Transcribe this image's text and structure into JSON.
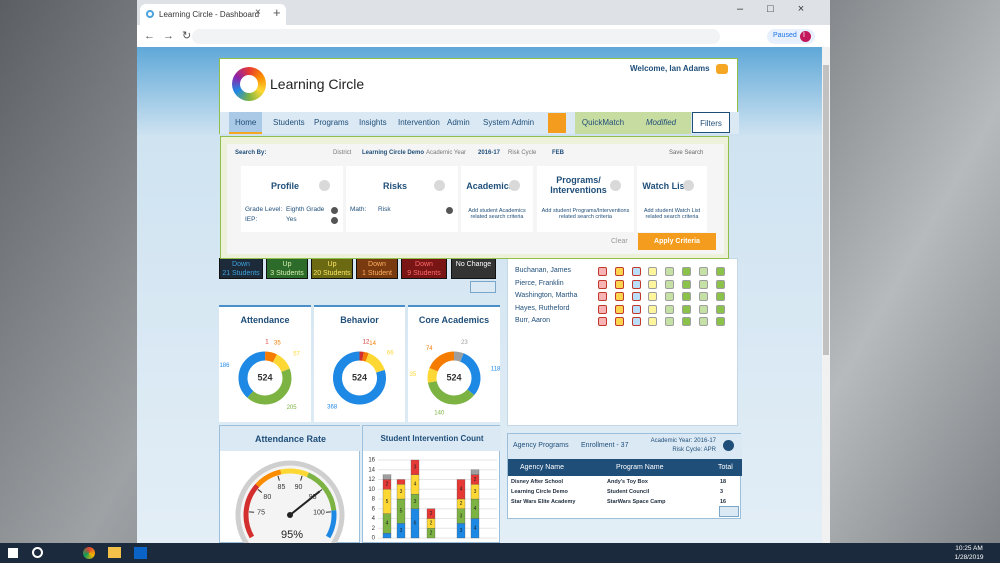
{
  "browser": {
    "tab_title": "Learning Circle - Dashboard",
    "profile_status": "Paused",
    "profile_initial": "I"
  },
  "header": {
    "brand": "Learning Circle",
    "welcome": "Welcome, Ian Adams",
    "nav": [
      "Home",
      "Students",
      "Programs",
      "Insights",
      "Intervention",
      "Admin",
      "System Admin"
    ],
    "quickmatch": "QuickMatch",
    "modified": "Modified",
    "filters": "Filters"
  },
  "filter": {
    "search_by": "Search By:",
    "district_label": "District",
    "district": "Learning Circle Demo",
    "year_label": "Academic Year",
    "year": "2016-17",
    "cycle_label": "Risk Cycle",
    "cycle": "FEB",
    "save": "Save Search",
    "cards": [
      {
        "title": "Profile",
        "items": [
          [
            "Grade Level:",
            "Eighth Grade"
          ],
          [
            "IEP:",
            "Yes"
          ]
        ]
      },
      {
        "title": "Risks",
        "items": [
          [
            "Math:",
            "Risk"
          ]
        ]
      },
      {
        "title": "Academics",
        "hint": "Add student Academics related search criteria"
      },
      {
        "title": "Programs/ Interventions",
        "hint": "Add student Programs/Interventions related search criteria"
      },
      {
        "title": "Watch List",
        "hint": "Add student Watch List related search criteria"
      }
    ],
    "clear": "Clear",
    "apply": "Apply Criteria"
  },
  "status_boxes": [
    {
      "direction": "Down",
      "count": "21 Students",
      "color": "#1c2a3a",
      "text_color": "#3ea3e0"
    },
    {
      "direction": "Up",
      "count": "3 Students",
      "color": "#2d6b2a",
      "text_color": "#d6f0b0"
    },
    {
      "direction": "Up",
      "count": "20 Students",
      "color": "#6b6a12",
      "text_color": "#ffe566"
    },
    {
      "direction": "Down",
      "count": "1 Student",
      "color": "#7a3a10",
      "text_color": "#ffb060"
    },
    {
      "direction": "Down",
      "count": "9 Students",
      "color": "#7a1515",
      "text_color": "#ff6a6a"
    },
    {
      "direction": "No Change",
      "color": "#333333",
      "text_color": "#ffffff"
    }
  ],
  "donuts": [
    {
      "title": "Attendance",
      "center": "524",
      "segments": [
        {
          "value": 1,
          "color": "#d32f2f"
        },
        {
          "value": 35,
          "color": "#f57c00"
        },
        {
          "value": 57,
          "color": "#fdd835"
        },
        {
          "value": 205,
          "color": "#7cb342"
        },
        {
          "value": 186,
          "color": "#1e88e5"
        }
      ]
    },
    {
      "title": "Behavior",
      "center": "524",
      "segments": [
        {
          "value": 12,
          "color": "#d32f2f"
        },
        {
          "value": 14,
          "color": "#f57c00"
        },
        {
          "value": 66,
          "color": "#fdd835"
        },
        {
          "value": 368,
          "color": "#1e88e5"
        }
      ]
    },
    {
      "title": "Core Academics",
      "center": "524",
      "segments": [
        {
          "value": 23,
          "color": "#9e9e9e"
        },
        {
          "value": 118,
          "color": "#1e88e5"
        },
        {
          "value": 140,
          "color": "#7cb342"
        },
        {
          "value": 35,
          "color": "#fdd835"
        },
        {
          "value": 74,
          "color": "#f57c00"
        }
      ]
    }
  ],
  "gauge": {
    "title": "Attendance Rate",
    "lim": [
      70,
      105
    ],
    "ticks": [
      75,
      80,
      85,
      90,
      95,
      100
    ],
    "value": 95,
    "value_label": "95%"
  },
  "intervention_chart": {
    "type": "bar",
    "title": "Student Intervention Count",
    "ylim": [
      0,
      16
    ],
    "yticks": [
      0,
      2,
      4,
      6,
      8,
      10,
      12,
      14,
      16
    ],
    "series": [
      {
        "color": "#1e88e5",
        "values": [
          1,
          3,
          6,
          0,
          0,
          3,
          4,
          0
        ]
      },
      {
        "color": "#7cb342",
        "values": [
          4,
          5,
          3,
          2,
          0,
          3,
          4,
          0
        ]
      },
      {
        "color": "#fdd835",
        "values": [
          5,
          3,
          4,
          2,
          0,
          2,
          3,
          0
        ]
      },
      {
        "color": "#e53935",
        "values": [
          2,
          1,
          3,
          2,
          0,
          4,
          2,
          0
        ]
      },
      {
        "color": "#9e9e9e",
        "values": [
          1,
          0,
          0,
          0,
          0,
          0,
          1,
          0
        ]
      }
    ]
  },
  "students": [
    "Buchanan, James",
    "Pierce, Franklin",
    "Washington, Martha",
    "Hayes, Rutheford",
    "Burr, Aaron"
  ],
  "agency": {
    "title": "Agency Programs",
    "enrollment": "Enrollment - 37",
    "year": "Academic Year: 2016-17",
    "cycle": "Risk Cycle: APR",
    "columns": [
      "Agency Name",
      "Program Name",
      "Total"
    ],
    "rows": [
      [
        "Disney After School",
        "Andy's Toy Box",
        18
      ],
      [
        "Learning Circle Demo",
        "Student Council",
        3
      ],
      [
        "Star Wars Elite Academy",
        "StarWars Space Camp",
        16
      ]
    ]
  },
  "taskbar": {
    "time": "10:25 AM",
    "date": "1/28/2019"
  }
}
